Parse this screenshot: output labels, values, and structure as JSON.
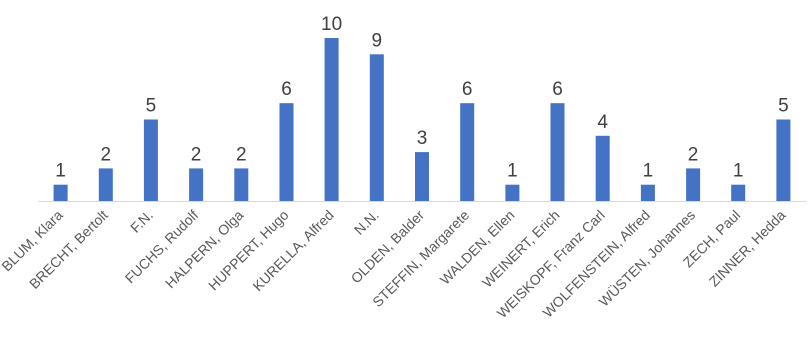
{
  "chart_data": {
    "type": "bar",
    "categories": [
      "BLUM, Klara",
      "BRECHT, Bertolt",
      "F.N.",
      "FUCHS, Rudolf",
      "HALPERN, Olga",
      "HUPPERT, Hugo",
      "KURELLA, Alfred",
      "N.N.",
      "OLDEN, Balder",
      "STEFFIN, Margarete",
      "WALDEN, Ellen",
      "WEINERT, Erich",
      "WEISKOPF, Franz Carl",
      "WOLFENSTEIN, Alfred",
      "WÜSTEN, Johannes",
      "ZECH, Paul",
      "ZINNER, Hedda"
    ],
    "values": [
      1,
      2,
      5,
      2,
      2,
      6,
      10,
      9,
      3,
      6,
      1,
      6,
      4,
      1,
      2,
      1,
      5
    ],
    "data_labels": [
      "1",
      "2",
      "5",
      "2",
      "2",
      "6",
      "10",
      "9",
      "3",
      "6",
      "1",
      "6",
      "4",
      "1",
      "2",
      "1",
      "5"
    ],
    "title": "",
    "xlabel": "",
    "ylabel": "",
    "ylim": [
      0,
      10
    ],
    "grid": false,
    "legend": "none",
    "bar_color": "#4472c4",
    "axis_color": "#d9d9d9"
  }
}
